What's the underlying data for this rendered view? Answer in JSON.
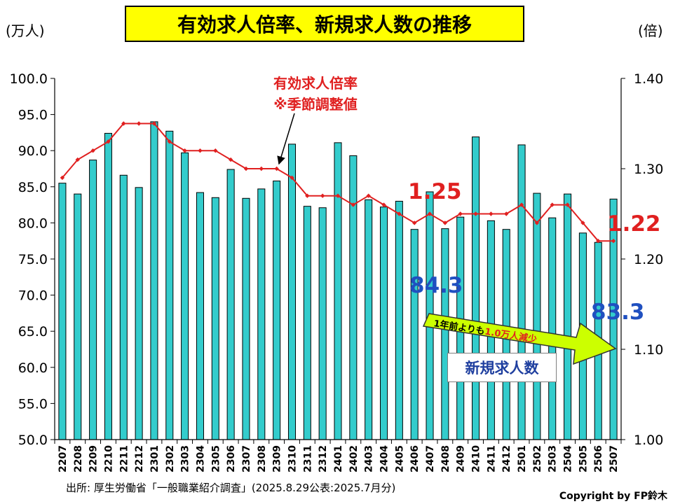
{
  "title": "有効求人倍率、新規求人数の推移",
  "left_unit": "(万人)",
  "right_unit": "(倍)",
  "source": "出所: 厚生労働省「一般職業紹介調査」(2025.8.29公表:2025.7月分)",
  "copyright": "Copyright by FP鈴木",
  "line_label_1": "有効求人倍率",
  "line_label_2": "※季節調整値",
  "bar_legend": "新規求人数",
  "arrow_note_a": "1年前よりも",
  "arrow_note_b": "1.0万人減少",
  "callouts": {
    "ratio_last_year": "1.25",
    "ratio_now": "1.22",
    "jobs_last_year": "84.3",
    "jobs_now": "83.3"
  },
  "colors": {
    "bar": "#33cccc",
    "line": "#e02020",
    "title_bg": "#ffff00",
    "arrow": "#ccff00",
    "blue_text": "#2050c0"
  },
  "chart_data": {
    "type": "bar",
    "categories": [
      "2207",
      "2208",
      "2209",
      "2210",
      "2211",
      "2212",
      "2301",
      "2302",
      "2303",
      "2304",
      "2305",
      "2306",
      "2307",
      "2308",
      "2309",
      "2310",
      "2311",
      "2312",
      "2401",
      "2402",
      "2403",
      "2404",
      "2405",
      "2406",
      "2407",
      "2408",
      "2409",
      "2410",
      "2411",
      "2412",
      "2501",
      "2502",
      "2503",
      "2504",
      "2505",
      "2506",
      "2507"
    ],
    "series": [
      {
        "name": "新規求人数",
        "axis": "left",
        "type": "bar",
        "values": [
          85.5,
          84.0,
          88.7,
          92.4,
          86.6,
          84.9,
          94.0,
          92.7,
          89.7,
          84.2,
          83.5,
          87.4,
          83.4,
          84.7,
          85.8,
          90.9,
          82.3,
          82.1,
          91.1,
          89.3,
          83.2,
          82.2,
          83.0,
          79.1,
          84.3,
          79.2,
          80.8,
          91.9,
          80.3,
          79.1,
          90.8,
          84.1,
          80.7,
          84.0,
          78.6,
          77.3,
          83.3
        ]
      },
      {
        "name": "有効求人倍率",
        "axis": "right",
        "type": "line",
        "values": [
          1.29,
          1.31,
          1.32,
          1.33,
          1.35,
          1.35,
          1.35,
          1.33,
          1.32,
          1.32,
          1.32,
          1.31,
          1.3,
          1.3,
          1.3,
          1.29,
          1.27,
          1.27,
          1.27,
          1.26,
          1.27,
          1.26,
          1.25,
          1.24,
          1.25,
          1.24,
          1.25,
          1.25,
          1.25,
          1.25,
          1.26,
          1.24,
          1.26,
          1.26,
          1.24,
          1.22,
          1.22
        ]
      }
    ],
    "y_left": {
      "min": 50.0,
      "max": 100.0,
      "step": 5.0,
      "ticks": [
        "50.0",
        "55.0",
        "60.0",
        "65.0",
        "70.0",
        "75.0",
        "80.0",
        "85.0",
        "90.0",
        "95.0",
        "100.0"
      ]
    },
    "y_right": {
      "min": 1.0,
      "max": 1.4,
      "step": 0.1,
      "ticks": [
        "1.00",
        "1.10",
        "1.20",
        "1.30",
        "1.40"
      ]
    },
    "grid": false
  }
}
